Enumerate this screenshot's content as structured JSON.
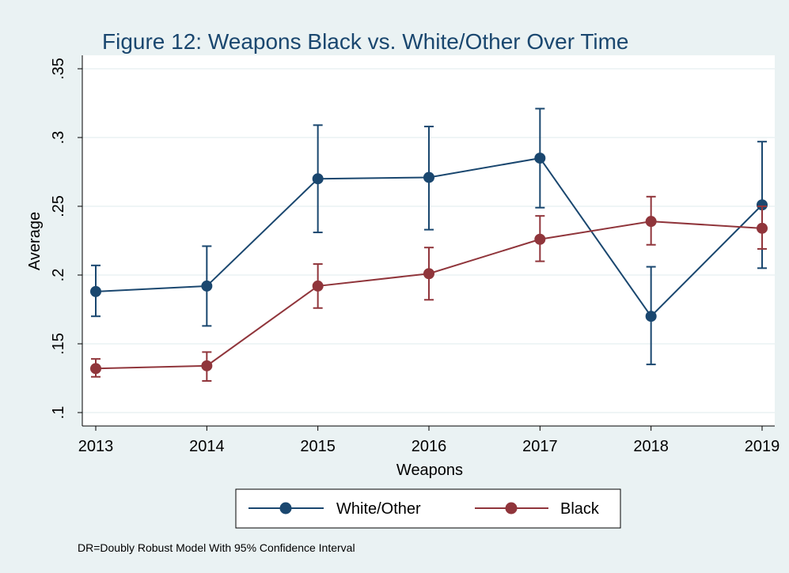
{
  "chart_data": {
    "type": "line",
    "title": "Figure 12: Weapons Black vs. White/Other Over Time",
    "xlabel": "Weapons",
    "ylabel": "Average",
    "note": "DR=Doubly Robust Model With 95% Confidence Interval",
    "x": [
      "2013",
      "2014",
      "2015",
      "2016",
      "2017",
      "2018",
      "2019"
    ],
    "ylim": [
      0.1,
      0.35
    ],
    "yticks": [
      {
        "value": 0.1,
        "label": ".1"
      },
      {
        "value": 0.15,
        "label": ".15"
      },
      {
        "value": 0.2,
        "label": ".2"
      },
      {
        "value": 0.25,
        "label": ".25"
      },
      {
        "value": 0.3,
        "label": ".3"
      },
      {
        "value": 0.35,
        "label": ".35"
      }
    ],
    "grid": true,
    "legend_position": "bottom",
    "series": [
      {
        "name": "White/Other",
        "color": "#1a476f",
        "values": [
          0.188,
          0.192,
          0.27,
          0.271,
          0.285,
          0.17,
          0.251
        ],
        "ci_low": [
          0.17,
          0.163,
          0.231,
          0.233,
          0.249,
          0.135,
          0.205
        ],
        "ci_high": [
          0.207,
          0.221,
          0.309,
          0.308,
          0.321,
          0.206,
          0.297
        ]
      },
      {
        "name": "Black",
        "color": "#90353b",
        "values": [
          0.132,
          0.134,
          0.192,
          0.201,
          0.226,
          0.239,
          0.234
        ],
        "ci_low": [
          0.126,
          0.123,
          0.176,
          0.182,
          0.21,
          0.222,
          0.219
        ],
        "ci_high": [
          0.139,
          0.144,
          0.208,
          0.22,
          0.243,
          0.257,
          0.25
        ]
      }
    ]
  }
}
